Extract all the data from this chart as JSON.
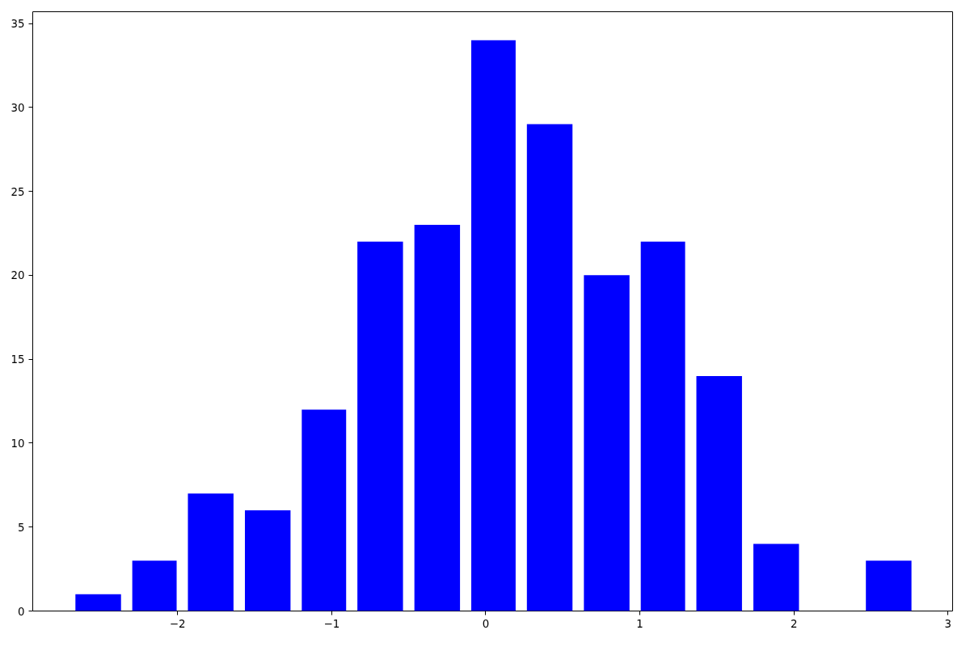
{
  "chart_data": {
    "type": "histogram",
    "bins": [
      -2.7,
      -2.33,
      -1.97,
      -1.6,
      -1.23,
      -0.87,
      -0.5,
      -0.13,
      0.23,
      0.6,
      0.97,
      1.33,
      1.7,
      2.07,
      2.43,
      2.8
    ],
    "values": [
      1,
      3,
      7,
      6,
      12,
      22,
      23,
      34,
      29,
      20,
      22,
      14,
      4,
      0,
      3
    ],
    "color": "#0000ff",
    "xlim": [
      -2.94,
      3.03
    ],
    "ylim": [
      0,
      35.7
    ],
    "xticks": [
      {
        "value": -2,
        "label": "−2"
      },
      {
        "value": -1,
        "label": "−1"
      },
      0,
      1,
      2,
      3
    ],
    "yticks": [
      0,
      5,
      10,
      15,
      20,
      25,
      30,
      35
    ],
    "grid": false
  }
}
